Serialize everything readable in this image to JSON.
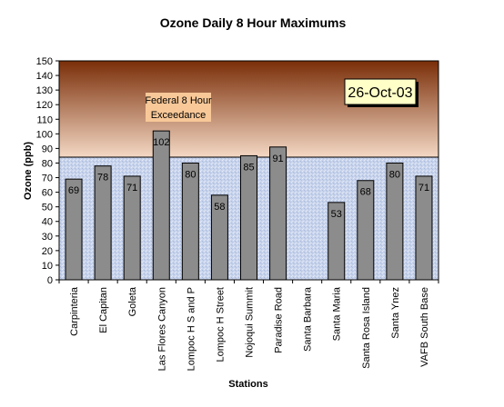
{
  "chart_data": {
    "type": "bar",
    "title": "Ozone Daily 8 Hour Maximums",
    "xlabel": "Stations",
    "ylabel": "Ozone (ppb)",
    "ylim": [
      0,
      150
    ],
    "ytick_step": 10,
    "categories": [
      "Carpinteria",
      "El Capitan",
      "Goleta",
      "Las Flores Canyon",
      "Lompoc H S and P",
      "Lompoc H Street",
      "Nojoqui Summit",
      "Paradise Road",
      "Santa Barbara",
      "Santa Maria",
      "Santa Rosa Island",
      "Santa Ynez",
      "VAFB South Base"
    ],
    "values": [
      69,
      78,
      71,
      102,
      80,
      58,
      85,
      91,
      null,
      53,
      68,
      80,
      71
    ],
    "threshold": {
      "value": 84,
      "label_line1": "Federal 8 Hour",
      "label_line2": "Exceedance"
    },
    "date_label": "26-Oct-03",
    "colors": {
      "bar": "#8c8c8c",
      "bar_stroke": "#000000",
      "exceed_top": "#7a2e08",
      "exceed_bottom": "#f4d8c4",
      "normal_bg": "#c8d4ec",
      "date_box": "#ffffc8",
      "annot_box": "#f8c898"
    }
  }
}
